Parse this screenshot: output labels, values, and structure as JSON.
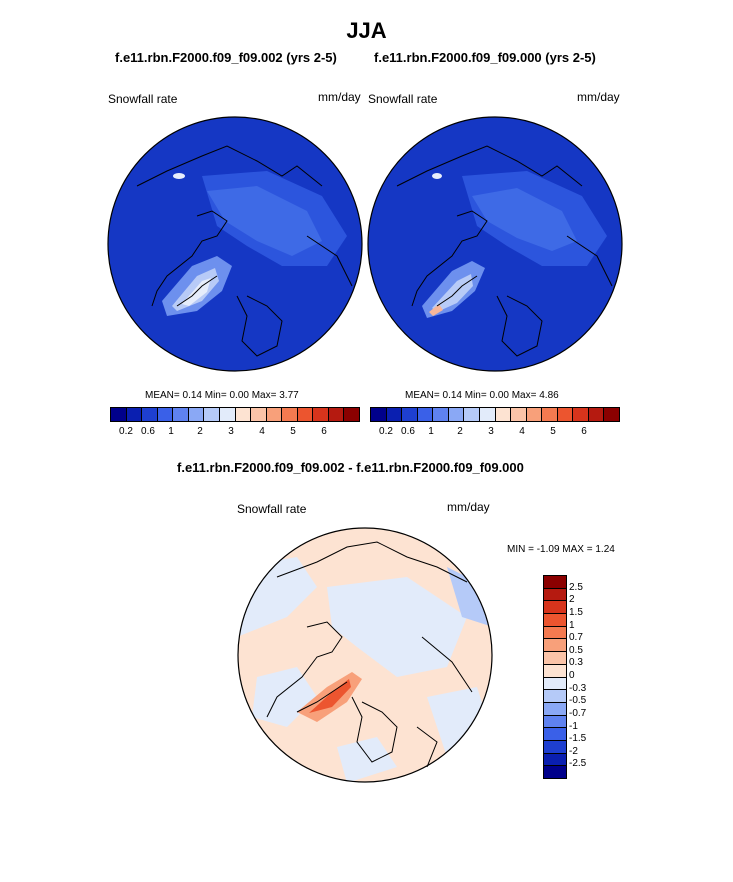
{
  "figure": {
    "title": "JJA",
    "subtitle_left": "f.e11.rbn.F2000.f09_f09.002 (yrs 2-5)",
    "subtitle_right": "f.e11.rbn.F2000.f09_f09.000 (yrs 2-5)",
    "diff_title": "f.e11.rbn.F2000.f09_f09.002 - f.e11.rbn.F2000.f09_f09.000"
  },
  "panels": {
    "left": {
      "variable": "Snowfall rate",
      "units": "mm/day",
      "stats": "MEAN=   0.14  Min=   0.00  Max=   3.77"
    },
    "right": {
      "variable": "Snowfall rate",
      "units": "mm/day",
      "stats": "MEAN=   0.14  Min=   0.00  Max=   4.86"
    },
    "diff": {
      "variable": "Snowfall rate",
      "units": "mm/day",
      "minmax": "MIN =  -1.09 MAX =   1.24"
    }
  },
  "colorbar_top": {
    "colors": [
      "#00008b",
      "#0a1fb0",
      "#1e3fd0",
      "#3a60e8",
      "#5f82f0",
      "#8aa8f5",
      "#b5caf8",
      "#e2ebfa",
      "#fde3d2",
      "#fbc4a8",
      "#f8a07a",
      "#f47a50",
      "#ec552f",
      "#d7341c",
      "#b51a10",
      "#8b0000"
    ],
    "labels": [
      "0.2",
      "0.6",
      "1",
      "2",
      "3",
      "4",
      "5",
      "6"
    ]
  },
  "colorbar_diff": {
    "colors": [
      "#8b0000",
      "#b51a10",
      "#d7341c",
      "#ec552f",
      "#f47a50",
      "#f8a07a",
      "#fbc4a8",
      "#fde3d2",
      "#e2ebfa",
      "#b5caf8",
      "#8aa8f5",
      "#5f82f0",
      "#3a60e8",
      "#1e3fd0",
      "#0a1fb0",
      "#00008b"
    ],
    "labels": [
      "2.5",
      "2",
      "1.5",
      "1",
      "0.7",
      "0.5",
      "0.3",
      "0",
      "-0.3",
      "-0.5",
      "-0.7",
      "-1",
      "-1.5",
      "-2",
      "-2.5"
    ]
  }
}
